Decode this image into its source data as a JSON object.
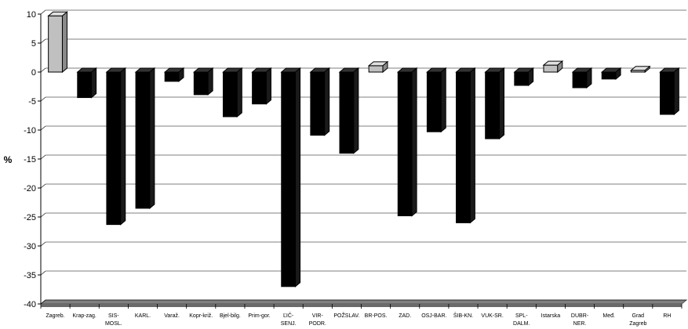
{
  "chart_data": {
    "type": "bar",
    "title": "",
    "xlabel": "",
    "ylabel": "%",
    "ylim": [
      -40,
      10
    ],
    "yticks": [
      10,
      5,
      0,
      -5,
      -10,
      -15,
      -20,
      -25,
      -30,
      -35,
      -40
    ],
    "grid": true,
    "legend": "none",
    "categories": [
      [
        "Zagreb."
      ],
      [
        "Krap-zag."
      ],
      [
        "SIS-",
        "MOSL."
      ],
      [
        "KARL."
      ],
      [
        "Varaž."
      ],
      [
        "Kopr-križ."
      ],
      [
        "Bjel-bilg."
      ],
      [
        "Prim-gor."
      ],
      [
        "ĽIČ-",
        "SENJ."
      ],
      [
        "VIR-",
        "PODR."
      ],
      [
        "POŽSLAV."
      ],
      [
        "BR-POS."
      ],
      [
        "ZAD."
      ],
      [
        "OSJ-BAR."
      ],
      [
        "ŠIB-KN."
      ],
      [
        "VUK-SR."
      ],
      [
        "SPL-",
        "DALM."
      ],
      [
        "Istarska"
      ],
      [
        "DUBR-",
        "NER."
      ],
      [
        "Međ."
      ],
      [
        "Grad",
        "Zagreb"
      ],
      [
        "RH"
      ]
    ],
    "values": [
      9.7,
      -4.4,
      -26.3,
      -23.5,
      -1.6,
      -3.9,
      -7.7,
      -5.5,
      -37.0,
      -10.9,
      -14.0,
      1.1,
      -24.8,
      -10.3,
      -26.0,
      -11.5,
      -2.3,
      1.2,
      -2.7,
      -1.2,
      0.3,
      -7.3
    ],
    "colors": {
      "positive_bar": "#c0c0c0",
      "negative_bar": "#000000",
      "floor": "#808080",
      "gridline": "#000000"
    }
  }
}
